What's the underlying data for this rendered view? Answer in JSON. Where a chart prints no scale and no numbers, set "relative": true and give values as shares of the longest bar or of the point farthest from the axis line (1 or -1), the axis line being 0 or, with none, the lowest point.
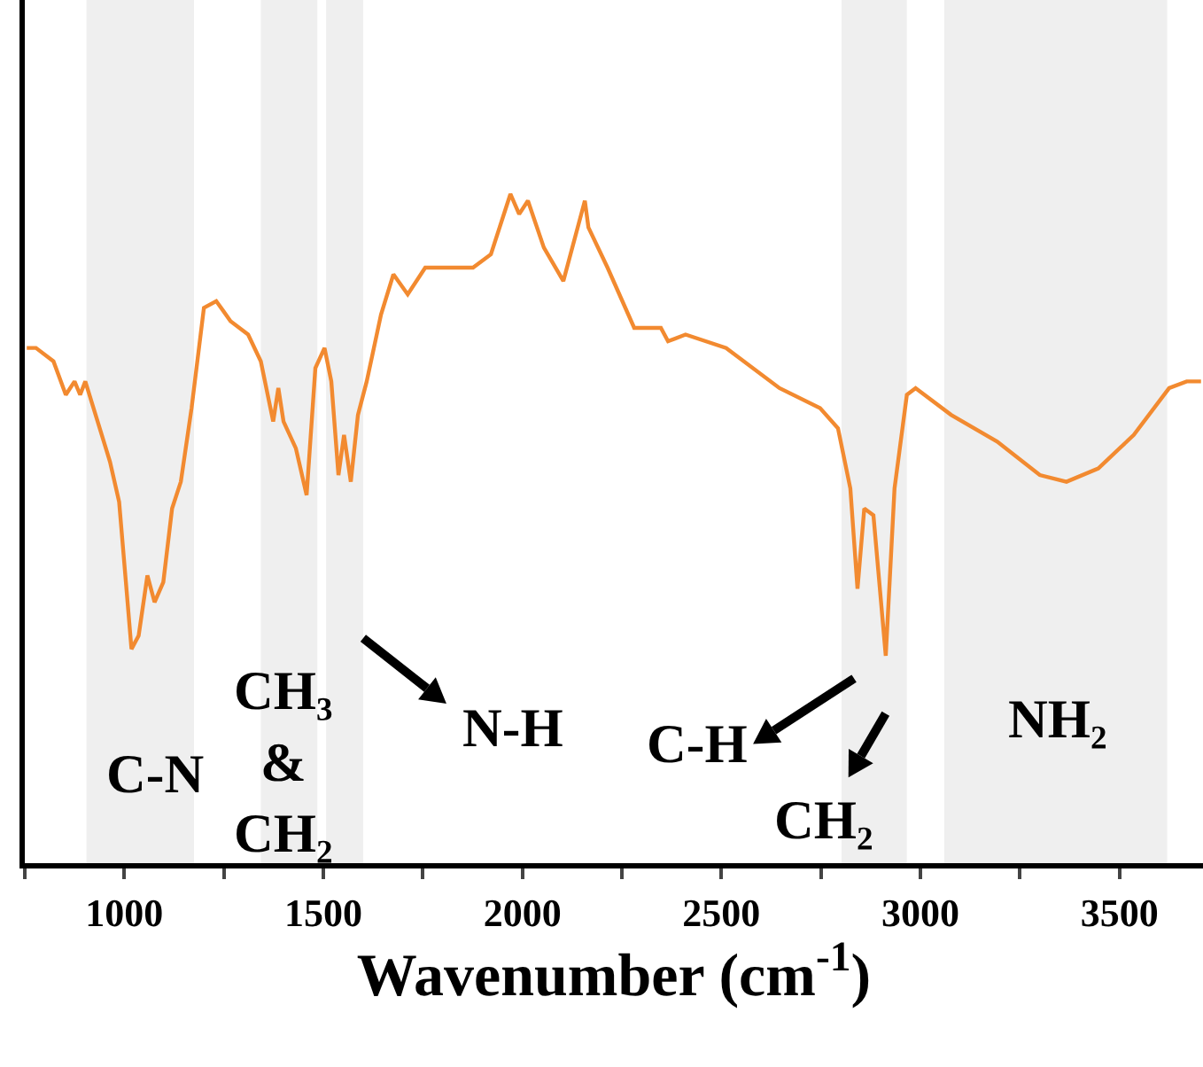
{
  "chart_data": {
    "type": "line",
    "relative": true,
    "xlabel": "Wavenumber (cm$^{-1}$)",
    "xlim": [
      750,
      3710
    ],
    "xticks": [
      {
        "value": 750,
        "label": null
      },
      1000,
      {
        "value": 1250,
        "label": null
      },
      1500,
      {
        "value": 1750,
        "label": null
      },
      2000,
      {
        "value": 2250,
        "label": null
      },
      2500,
      {
        "value": 2750,
        "label": null
      },
      3000,
      {
        "value": 3250,
        "label": null
      },
      3500
    ],
    "x": [
      755,
      778,
      822,
      853,
      875,
      889,
      902,
      933,
      964,
      987,
      1004,
      1018,
      1036,
      1058,
      1076,
      1098,
      1120,
      1142,
      1169,
      1200,
      1231,
      1267,
      1311,
      1343,
      1374,
      1387,
      1400,
      1431,
      1458,
      1480,
      1503,
      1520,
      1538,
      1552,
      1569,
      1587,
      1609,
      1645,
      1676,
      1712,
      1756,
      1876,
      1921,
      1970,
      1992,
      2014,
      2054,
      2103,
      2157,
      2166,
      2214,
      2281,
      2348,
      2366,
      2410,
      2512,
      2646,
      2748,
      2793,
      2824,
      2842,
      2859,
      2882,
      2913,
      2935,
      2966,
      2988,
      3077,
      3193,
      3300,
      3367,
      3447,
      3536,
      3625,
      3669,
      3705
    ],
    "series": [
      {
        "color": "#f28a30",
        "values": [
          0.77,
          0.77,
          0.75,
          0.7,
          0.72,
          0.7,
          0.72,
          0.66,
          0.6,
          0.54,
          0.42,
          0.32,
          0.34,
          0.43,
          0.39,
          0.42,
          0.53,
          0.57,
          0.68,
          0.83,
          0.84,
          0.81,
          0.79,
          0.75,
          0.66,
          0.71,
          0.66,
          0.62,
          0.55,
          0.74,
          0.77,
          0.72,
          0.58,
          0.64,
          0.57,
          0.67,
          0.72,
          0.82,
          0.88,
          0.85,
          0.89,
          0.89,
          0.91,
          1.0,
          0.97,
          0.99,
          0.92,
          0.87,
          0.99,
          0.95,
          0.89,
          0.8,
          0.8,
          0.78,
          0.79,
          0.77,
          0.71,
          0.68,
          0.65,
          0.56,
          0.41,
          0.53,
          0.52,
          0.31,
          0.56,
          0.7,
          0.71,
          0.67,
          0.63,
          0.58,
          0.57,
          0.59,
          0.64,
          0.71,
          0.72,
          0.72
        ]
      }
    ],
    "bands": [
      {
        "axis": "x",
        "from": 905,
        "to": 1175,
        "color": "#efefef"
      },
      {
        "axis": "x",
        "from": 1343,
        "to": 1485,
        "color": "#efefef"
      },
      {
        "axis": "x",
        "from": 1507,
        "to": 1600,
        "color": "#efefef"
      },
      {
        "axis": "x",
        "from": 2802,
        "to": 2966,
        "color": "#efefef"
      },
      {
        "axis": "x",
        "from": 3060,
        "to": 3620,
        "color": "#efefef"
      }
    ],
    "annotations": [
      "C-N",
      "CH₃\n&\nCH₂",
      "N-H",
      "C-H",
      "CH₂",
      "NH₂"
    ],
    "grid": false
  }
}
